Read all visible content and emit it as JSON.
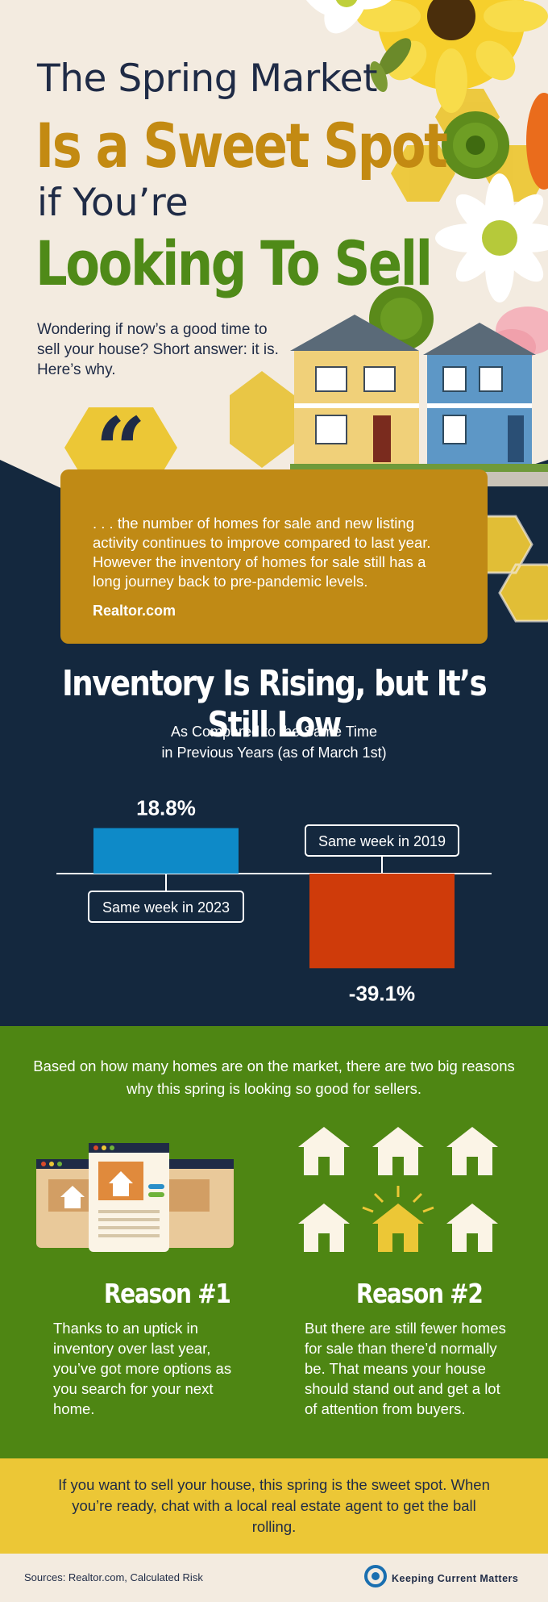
{
  "title": {
    "line1": "The Spring Market",
    "line2": "Is a Sweet Spot",
    "line3": "if You’re",
    "line4": "Looking To Sell"
  },
  "intro": "Wondering if now’s a good time to sell your house? Short answer: it is. Here’s why.",
  "quote": {
    "text": ". . . the number of homes for sale and new listing activity continues to improve compared to last year. However the inventory of homes for sale still has a long journey back to pre-pandemic levels.",
    "source": "Realtor.com"
  },
  "chart_data": {
    "type": "bar",
    "title": "Inventory Is Rising, but It’s Still Low",
    "subtitle_line1": "As Compared to the Same Time",
    "subtitle_line2": "in Previous Years (as of March 1st)",
    "categories": [
      "Same week in 2023",
      "Same week in 2019"
    ],
    "values": [
      18.8,
      -39.1
    ],
    "value_labels": [
      "18.8%",
      "-39.1%"
    ],
    "unit": "%",
    "colors": [
      "#0e8ac8",
      "#cf3b0a"
    ],
    "ylim": [
      -45,
      25
    ],
    "grid": false
  },
  "reasons": {
    "intro": "Based on how many homes are on the market, there are two big reasons why this spring is looking so good for sellers.",
    "items": [
      {
        "title": "Reason #1",
        "text": "Thanks to an uptick in inventory over last year, you’ve got more options as you search for your next home."
      },
      {
        "title": "Reason #2",
        "text": "But there are still fewer homes for sale than there’d normally be. That means your house should stand out and get a lot of attention from buyers."
      }
    ]
  },
  "cta": "If you want to sell your house, this spring is the sweet spot. When you’re ready, chat with a local real estate agent to get the ball rolling.",
  "footer": {
    "sources": "Sources: Realtor.com, Calculated Risk",
    "brand": "Keeping Current Matters"
  },
  "colors": {
    "navy": "#14283e",
    "gold": "#c08a15",
    "green": "#4e8613",
    "yellow": "#ecc736",
    "cream": "#f3ebe0"
  }
}
